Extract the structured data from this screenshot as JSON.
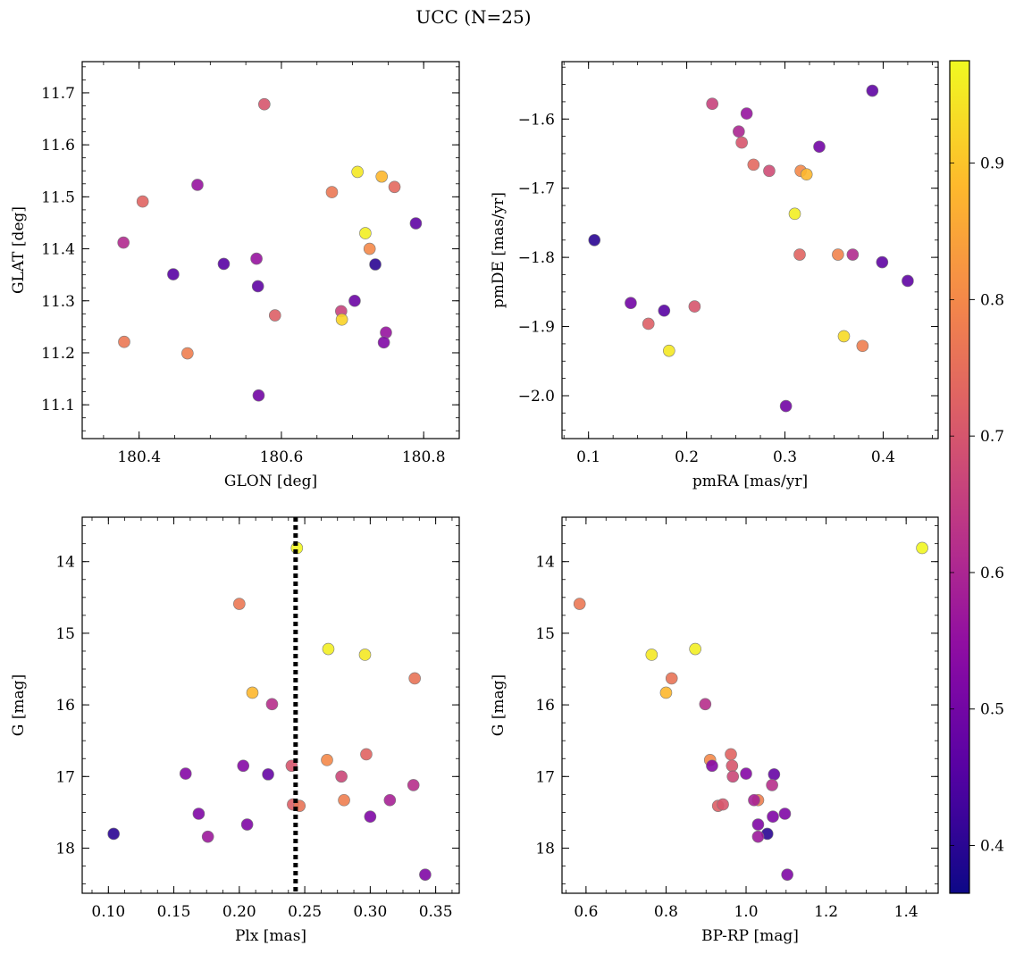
{
  "figure": {
    "title": "UCC (N=25)"
  },
  "colorbar": {
    "cmap": "plasma",
    "range": [
      0.365,
      0.975
    ],
    "ticks": [
      0.4,
      0.5,
      0.6,
      0.7,
      0.8,
      0.9
    ]
  },
  "chart_data": [
    {
      "type": "scatter",
      "xlabel": "GLON [deg]",
      "ylabel": "GLAT [deg]",
      "xlim": [
        180.32,
        180.85
      ],
      "ylim": [
        11.035,
        11.76
      ],
      "xticks": [
        180.4,
        180.6,
        180.8
      ],
      "xtick_labels": [
        "180.4",
        "180.6",
        "180.8"
      ],
      "yticks": [
        11.1,
        11.2,
        11.3,
        11.4,
        11.5,
        11.6,
        11.7
      ],
      "ytick_labels": [
        "11.1",
        "11.2",
        "11.3",
        "11.4",
        "11.5",
        "11.6",
        "11.7"
      ],
      "points": [
        {
          "x": 180.576,
          "y": 11.678,
          "c": 0.7
        },
        {
          "x": 180.707,
          "y": 11.548,
          "c": 0.95
        },
        {
          "x": 180.741,
          "y": 11.539,
          "c": 0.88
        },
        {
          "x": 180.759,
          "y": 11.519,
          "c": 0.74
        },
        {
          "x": 180.482,
          "y": 11.523,
          "c": 0.56
        },
        {
          "x": 180.671,
          "y": 11.509,
          "c": 0.77
        },
        {
          "x": 180.405,
          "y": 11.491,
          "c": 0.73
        },
        {
          "x": 180.789,
          "y": 11.449,
          "c": 0.47
        },
        {
          "x": 180.718,
          "y": 11.43,
          "c": 0.96
        },
        {
          "x": 180.378,
          "y": 11.412,
          "c": 0.61
        },
        {
          "x": 180.724,
          "y": 11.4,
          "c": 0.8
        },
        {
          "x": 180.565,
          "y": 11.381,
          "c": 0.56
        },
        {
          "x": 180.519,
          "y": 11.371,
          "c": 0.46
        },
        {
          "x": 180.732,
          "y": 11.37,
          "c": 0.4
        },
        {
          "x": 180.448,
          "y": 11.351,
          "c": 0.46
        },
        {
          "x": 180.567,
          "y": 11.328,
          "c": 0.47
        },
        {
          "x": 180.703,
          "y": 11.3,
          "c": 0.49
        },
        {
          "x": 180.684,
          "y": 11.28,
          "c": 0.66
        },
        {
          "x": 180.591,
          "y": 11.272,
          "c": 0.72
        },
        {
          "x": 180.685,
          "y": 11.264,
          "c": 0.92
        },
        {
          "x": 180.747,
          "y": 11.239,
          "c": 0.56
        },
        {
          "x": 180.379,
          "y": 11.221,
          "c": 0.77
        },
        {
          "x": 180.744,
          "y": 11.22,
          "c": 0.52
        },
        {
          "x": 180.468,
          "y": 11.199,
          "c": 0.78
        },
        {
          "x": 180.568,
          "y": 11.118,
          "c": 0.5
        }
      ]
    },
    {
      "type": "scatter",
      "xlabel": "pmRA [mas/yr]",
      "ylabel": "pmDE [mas/yr]",
      "xlim": [
        0.073,
        0.456
      ],
      "ylim": [
        -2.062,
        -1.517
      ],
      "xticks": [
        0.1,
        0.2,
        0.3,
        0.4
      ],
      "xtick_labels": [
        "0.1",
        "0.2",
        "0.3",
        "0.4"
      ],
      "yticks": [
        -2.0,
        -1.9,
        -1.8,
        -1.7,
        -1.6
      ],
      "ytick_labels": [
        "−2.0",
        "−1.9",
        "−1.8",
        "−1.7",
        "−1.6"
      ],
      "points": [
        {
          "x": 0.389,
          "y": -1.559,
          "c": 0.47
        },
        {
          "x": 0.226,
          "y": -1.578,
          "c": 0.66
        },
        {
          "x": 0.261,
          "y": -1.592,
          "c": 0.56
        },
        {
          "x": 0.253,
          "y": -1.618,
          "c": 0.6
        },
        {
          "x": 0.256,
          "y": -1.634,
          "c": 0.7
        },
        {
          "x": 0.335,
          "y": -1.64,
          "c": 0.5
        },
        {
          "x": 0.268,
          "y": -1.666,
          "c": 0.74
        },
        {
          "x": 0.284,
          "y": -1.675,
          "c": 0.68
        },
        {
          "x": 0.316,
          "y": -1.675,
          "c": 0.8
        },
        {
          "x": 0.322,
          "y": -1.68,
          "c": 0.88
        },
        {
          "x": 0.31,
          "y": -1.737,
          "c": 0.96
        },
        {
          "x": 0.106,
          "y": -1.775,
          "c": 0.4
        },
        {
          "x": 0.315,
          "y": -1.796,
          "c": 0.73
        },
        {
          "x": 0.354,
          "y": -1.796,
          "c": 0.79
        },
        {
          "x": 0.369,
          "y": -1.796,
          "c": 0.61
        },
        {
          "x": 0.399,
          "y": -1.807,
          "c": 0.47
        },
        {
          "x": 0.425,
          "y": -1.834,
          "c": 0.47
        },
        {
          "x": 0.143,
          "y": -1.866,
          "c": 0.5
        },
        {
          "x": 0.208,
          "y": -1.871,
          "c": 0.7
        },
        {
          "x": 0.177,
          "y": -1.877,
          "c": 0.46
        },
        {
          "x": 0.161,
          "y": -1.896,
          "c": 0.72
        },
        {
          "x": 0.36,
          "y": -1.914,
          "c": 0.93
        },
        {
          "x": 0.379,
          "y": -1.928,
          "c": 0.78
        },
        {
          "x": 0.182,
          "y": -1.935,
          "c": 0.95
        },
        {
          "x": 0.301,
          "y": -2.015,
          "c": 0.5
        }
      ]
    },
    {
      "type": "scatter",
      "xlabel": "Plx [mas]",
      "ylabel": "G [mag]",
      "xlim": [
        0.08,
        0.368
      ],
      "ylim": [
        18.63,
        13.38
      ],
      "vline": 0.243,
      "xticks": [
        0.1,
        0.15,
        0.2,
        0.25,
        0.3,
        0.35
      ],
      "xtick_labels": [
        "0.10",
        "0.15",
        "0.20",
        "0.25",
        "0.30",
        "0.35"
      ],
      "yticks": [
        14,
        15,
        16,
        17,
        18
      ],
      "ytick_labels": [
        "14",
        "15",
        "16",
        "17",
        "18"
      ],
      "points": [
        {
          "x": 0.244,
          "y": 13.81,
          "c": 0.97
        },
        {
          "x": 0.2,
          "y": 14.59,
          "c": 0.77
        },
        {
          "x": 0.268,
          "y": 15.22,
          "c": 0.96
        },
        {
          "x": 0.296,
          "y": 15.3,
          "c": 0.95
        },
        {
          "x": 0.334,
          "y": 15.63,
          "c": 0.76
        },
        {
          "x": 0.21,
          "y": 15.83,
          "c": 0.88
        },
        {
          "x": 0.225,
          "y": 15.99,
          "c": 0.62
        },
        {
          "x": 0.297,
          "y": 16.69,
          "c": 0.73
        },
        {
          "x": 0.267,
          "y": 16.77,
          "c": 0.8
        },
        {
          "x": 0.203,
          "y": 16.85,
          "c": 0.53
        },
        {
          "x": 0.24,
          "y": 16.85,
          "c": 0.7
        },
        {
          "x": 0.159,
          "y": 16.96,
          "c": 0.53
        },
        {
          "x": 0.222,
          "y": 16.97,
          "c": 0.48
        },
        {
          "x": 0.278,
          "y": 17.0,
          "c": 0.67
        },
        {
          "x": 0.333,
          "y": 17.12,
          "c": 0.62
        },
        {
          "x": 0.28,
          "y": 17.33,
          "c": 0.78
        },
        {
          "x": 0.315,
          "y": 17.33,
          "c": 0.59
        },
        {
          "x": 0.241,
          "y": 17.39,
          "c": 0.72
        },
        {
          "x": 0.246,
          "y": 17.41,
          "c": 0.76
        },
        {
          "x": 0.169,
          "y": 17.52,
          "c": 0.52
        },
        {
          "x": 0.3,
          "y": 17.56,
          "c": 0.52
        },
        {
          "x": 0.206,
          "y": 17.67,
          "c": 0.52
        },
        {
          "x": 0.104,
          "y": 17.8,
          "c": 0.4
        },
        {
          "x": 0.176,
          "y": 17.84,
          "c": 0.57
        },
        {
          "x": 0.342,
          "y": 18.37,
          "c": 0.52
        }
      ]
    },
    {
      "type": "scatter",
      "xlabel": "BP-RP [mag]",
      "ylabel": "G [mag]",
      "xlim": [
        0.54,
        1.48
      ],
      "ylim": [
        18.63,
        13.38
      ],
      "xticks": [
        0.6,
        0.8,
        1.0,
        1.2,
        1.4
      ],
      "xtick_labels": [
        "0.6",
        "0.8",
        "1.0",
        "1.2",
        "1.4"
      ],
      "yticks": [
        14,
        15,
        16,
        17,
        18
      ],
      "ytick_labels": [
        "14",
        "15",
        "16",
        "17",
        "18"
      ],
      "points": [
        {
          "x": 1.44,
          "y": 13.81,
          "c": 0.97
        },
        {
          "x": 0.584,
          "y": 14.59,
          "c": 0.77
        },
        {
          "x": 0.873,
          "y": 15.22,
          "c": 0.96
        },
        {
          "x": 0.764,
          "y": 15.3,
          "c": 0.95
        },
        {
          "x": 0.814,
          "y": 15.63,
          "c": 0.76
        },
        {
          "x": 0.8,
          "y": 15.83,
          "c": 0.88
        },
        {
          "x": 0.898,
          "y": 15.99,
          "c": 0.62
        },
        {
          "x": 0.962,
          "y": 16.69,
          "c": 0.73
        },
        {
          "x": 0.91,
          "y": 16.77,
          "c": 0.8
        },
        {
          "x": 0.915,
          "y": 16.85,
          "c": 0.53
        },
        {
          "x": 0.965,
          "y": 16.85,
          "c": 0.7
        },
        {
          "x": 1.0,
          "y": 16.96,
          "c": 0.53
        },
        {
          "x": 1.07,
          "y": 16.97,
          "c": 0.48
        },
        {
          "x": 0.967,
          "y": 17.0,
          "c": 0.67
        },
        {
          "x": 1.065,
          "y": 17.12,
          "c": 0.62
        },
        {
          "x": 1.03,
          "y": 17.33,
          "c": 0.78
        },
        {
          "x": 1.02,
          "y": 17.33,
          "c": 0.59
        },
        {
          "x": 0.93,
          "y": 17.41,
          "c": 0.72
        },
        {
          "x": 0.942,
          "y": 17.39,
          "c": 0.7
        },
        {
          "x": 1.097,
          "y": 17.52,
          "c": 0.52
        },
        {
          "x": 1.067,
          "y": 17.56,
          "c": 0.52
        },
        {
          "x": 1.03,
          "y": 17.67,
          "c": 0.52
        },
        {
          "x": 1.053,
          "y": 17.8,
          "c": 0.4
        },
        {
          "x": 1.03,
          "y": 17.84,
          "c": 0.57
        },
        {
          "x": 1.103,
          "y": 18.37,
          "c": 0.52
        }
      ]
    }
  ]
}
